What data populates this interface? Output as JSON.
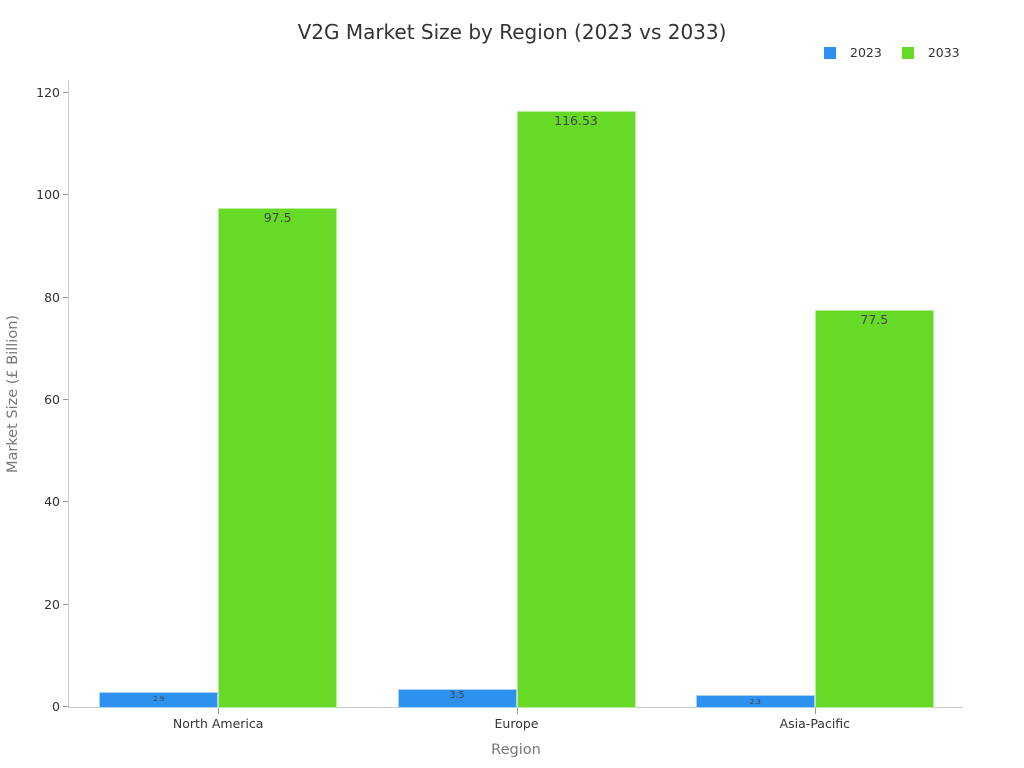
{
  "chart_data": {
    "type": "bar",
    "title": "V2G Market Size by Region (2023 vs 2033)",
    "xlabel": "Region",
    "ylabel": "Market Size (£ Billion)",
    "categories": [
      "North America",
      "Europe",
      "Asia-Pacific"
    ],
    "series": [
      {
        "name": "2023",
        "color": "#2d91f0",
        "values": [
          2.9,
          3.5,
          2.3
        ],
        "labels": [
          "2.9",
          "3.5",
          "2.3"
        ]
      },
      {
        "name": "2033",
        "color": "#66da26",
        "values": [
          97.5,
          116.53,
          77.5
        ],
        "labels": [
          "97.5",
          "116.53",
          "77.5"
        ]
      }
    ],
    "ylim": [
      0,
      120
    ],
    "yticks": [
      0,
      20,
      40,
      60,
      80,
      100,
      120
    ],
    "grid": false,
    "legend_position": "top-right"
  }
}
